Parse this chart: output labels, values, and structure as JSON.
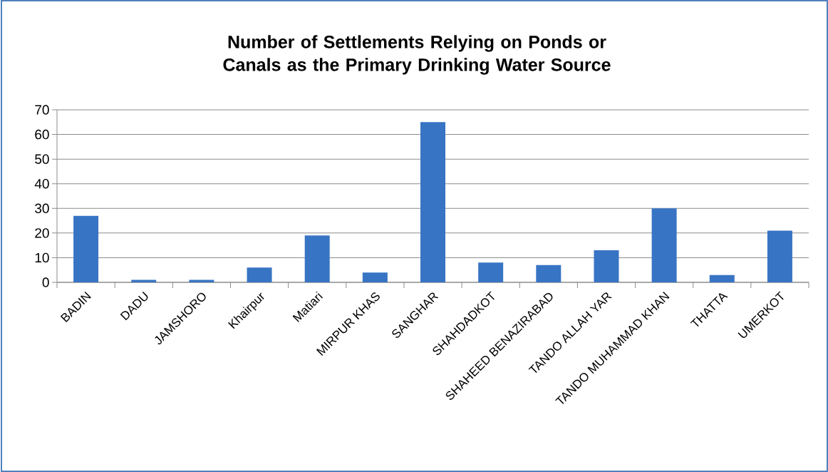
{
  "chart_data": {
    "type": "bar",
    "title": "Number of Settlements Relying on Ponds or Canals as the Primary Drinking Water Source",
    "categories": [
      "BADIN",
      "DADU",
      "JAMSHORO",
      "Khairpur",
      "Matiari",
      "MIRPUR KHAS",
      "SANGHAR",
      "SHAHDADKOT",
      "SHAHEED BENAZIRABAD",
      "TANDO ALLAH YAR",
      "TANDO MUHAMMAD KHAN",
      "THATTA",
      "UMERKOT"
    ],
    "values": [
      27,
      1,
      1,
      6,
      19,
      4,
      65,
      8,
      7,
      13,
      30,
      3,
      21
    ],
    "color": "#3874c4",
    "ylim": [
      0,
      70
    ],
    "yticks": [
      0,
      10,
      20,
      30,
      40,
      50,
      60,
      70
    ],
    "grid": "y"
  }
}
